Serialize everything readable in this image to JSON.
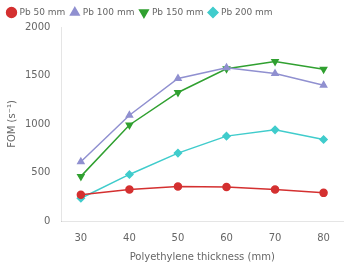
{
  "chart_data": {
    "type": "line",
    "x": [
      30,
      40,
      50,
      60,
      70,
      80
    ],
    "series": [
      {
        "name": "Pb 50 mm",
        "color": "#d43030",
        "marker": "circle",
        "values": [
          270,
          325,
          355,
          350,
          325,
          290
        ]
      },
      {
        "name": "Pb 100 mm",
        "color": "#9090d0",
        "marker": "triangle",
        "values": [
          610,
          1090,
          1470,
          1580,
          1520,
          1400
        ]
      },
      {
        "name": "Pb 150 mm",
        "color": "#30a030",
        "marker": "triangle-down",
        "values": [
          460,
          990,
          1325,
          1570,
          1645,
          1565
        ]
      },
      {
        "name": "Pb 200 mm",
        "color": "#40cccc",
        "marker": "diamond",
        "values": [
          235,
          480,
          700,
          875,
          940,
          840
        ]
      }
    ],
    "xlabel": "Polyethylene thickness (mm)",
    "ylabel": "FOM (s⁻¹)",
    "xlim": [
      26,
      84
    ],
    "ylim": [
      0,
      2000
    ],
    "xticks": [
      30,
      40,
      50,
      60,
      70,
      80
    ],
    "yticks": [
      0,
      500,
      1000,
      1500,
      2000
    ],
    "grid": false,
    "legend": "upper left"
  }
}
